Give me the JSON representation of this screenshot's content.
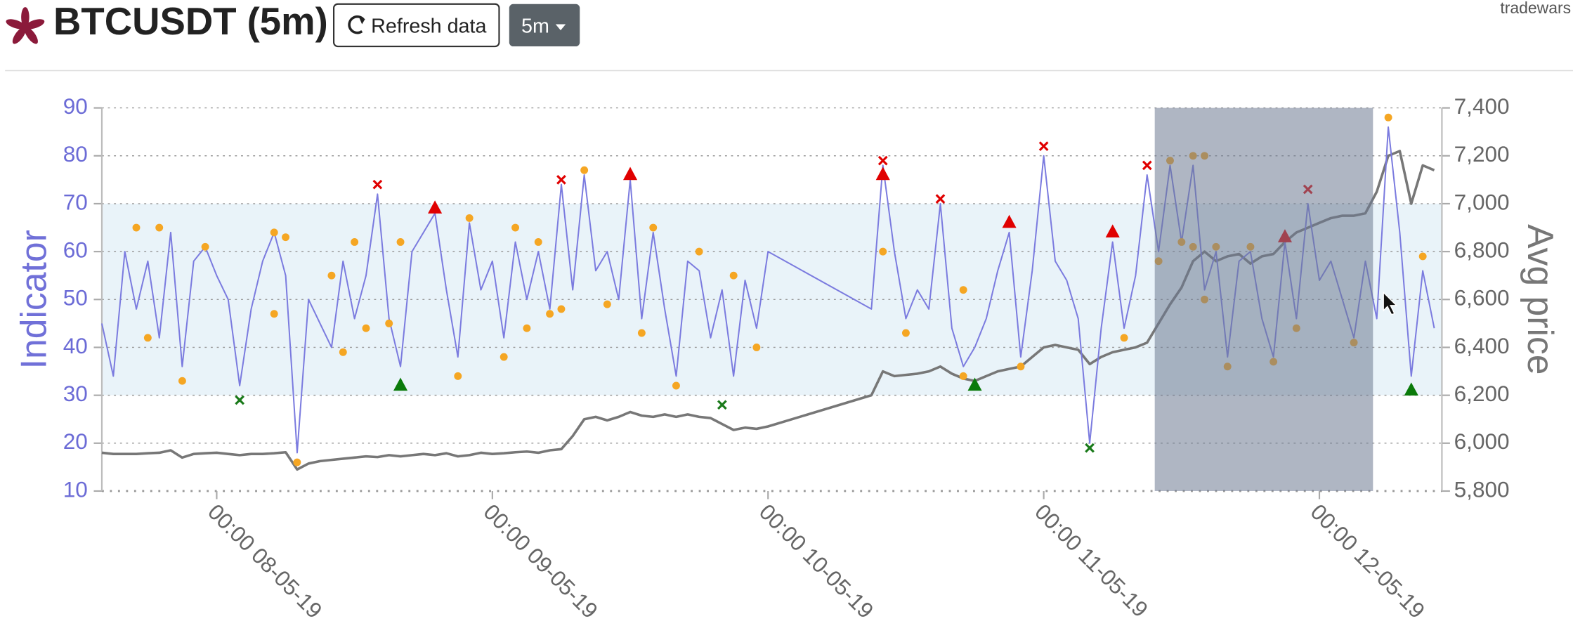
{
  "header": {
    "title": "BTCUSDT (5m)",
    "refresh": "Refresh data",
    "interval": "5m",
    "user": "tradewars"
  },
  "chart_data": {
    "type": "line",
    "y_label": "Indicator",
    "y2_label": "Avg price",
    "xlim": [
      "2019-05-07T14:00",
      "2019-05-12T10:40"
    ],
    "xticks": [
      {
        "value": "2019-05-08T00:00",
        "label": "00:00 08-05-19"
      },
      {
        "value": "2019-05-09T00:00",
        "label": "00:00 09-05-19"
      },
      {
        "value": "2019-05-10T00:00",
        "label": "00:00 10-05-19"
      },
      {
        "value": "2019-05-11T00:00",
        "label": "00:00 11-05-19"
      },
      {
        "value": "2019-05-12T00:00",
        "label": "00:00 12-05-19"
      }
    ],
    "ylim": [
      10,
      90
    ],
    "yticks": [
      10,
      20,
      30,
      40,
      50,
      60,
      70,
      80,
      90
    ],
    "y2lim": [
      5800,
      7400
    ],
    "y2ticks": [
      {
        "value": 5800,
        "label": "5,800"
      },
      {
        "value": 6000,
        "label": "6,000"
      },
      {
        "value": 6200,
        "label": "6,200"
      },
      {
        "value": 6400,
        "label": "6,400"
      },
      {
        "value": 6600,
        "label": "6,600"
      },
      {
        "value": 6800,
        "label": "6,800"
      },
      {
        "value": 7000,
        "label": "7,000"
      },
      {
        "value": 7200,
        "label": "7,200"
      },
      {
        "value": 7400,
        "label": "7,400"
      }
    ],
    "grid": true,
    "band": [
      30,
      70
    ],
    "band_color": "#e9f3f9",
    "selection": [
      "2019-05-11T09:40",
      "2019-05-12T04:40"
    ],
    "x": [
      "2019-05-07T14:00",
      "2019-05-07T15:00",
      "2019-05-07T16:00",
      "2019-05-07T17:00",
      "2019-05-07T18:00",
      "2019-05-07T19:00",
      "2019-05-07T20:00",
      "2019-05-07T21:00",
      "2019-05-07T22:00",
      "2019-05-07T23:00",
      "2019-05-08T00:00",
      "2019-05-08T01:00",
      "2019-05-08T02:00",
      "2019-05-08T03:00",
      "2019-05-08T04:00",
      "2019-05-08T05:00",
      "2019-05-08T06:00",
      "2019-05-08T07:00",
      "2019-05-08T08:00",
      "2019-05-08T09:00",
      "2019-05-08T10:00",
      "2019-05-08T11:00",
      "2019-05-08T12:00",
      "2019-05-08T13:00",
      "2019-05-08T14:00",
      "2019-05-08T15:00",
      "2019-05-08T16:00",
      "2019-05-08T17:00",
      "2019-05-08T18:00",
      "2019-05-08T19:00",
      "2019-05-08T20:00",
      "2019-05-08T21:00",
      "2019-05-08T22:00",
      "2019-05-08T23:00",
      "2019-05-09T00:00",
      "2019-05-09T01:00",
      "2019-05-09T02:00",
      "2019-05-09T03:00",
      "2019-05-09T04:00",
      "2019-05-09T05:00",
      "2019-05-09T06:00",
      "2019-05-09T07:00",
      "2019-05-09T08:00",
      "2019-05-09T09:00",
      "2019-05-09T10:00",
      "2019-05-09T11:00",
      "2019-05-09T12:00",
      "2019-05-09T13:00",
      "2019-05-09T14:00",
      "2019-05-09T15:00",
      "2019-05-09T16:00",
      "2019-05-09T17:00",
      "2019-05-09T18:00",
      "2019-05-09T19:00",
      "2019-05-09T20:00",
      "2019-05-09T21:00",
      "2019-05-09T22:00",
      "2019-05-09T23:00",
      "2019-05-10T00:00",
      "2019-05-10T09:00",
      "2019-05-10T10:00",
      "2019-05-10T11:00",
      "2019-05-10T12:00",
      "2019-05-10T13:00",
      "2019-05-10T14:00",
      "2019-05-10T15:00",
      "2019-05-10T16:00",
      "2019-05-10T17:00",
      "2019-05-10T18:00",
      "2019-05-10T19:00",
      "2019-05-10T20:00",
      "2019-05-10T21:00",
      "2019-05-10T22:00",
      "2019-05-10T23:00",
      "2019-05-11T00:00",
      "2019-05-11T01:00",
      "2019-05-11T02:00",
      "2019-05-11T03:00",
      "2019-05-11T04:00",
      "2019-05-11T05:00",
      "2019-05-11T06:00",
      "2019-05-11T07:00",
      "2019-05-11T08:00",
      "2019-05-11T09:00",
      "2019-05-11T10:00",
      "2019-05-11T11:00",
      "2019-05-11T12:00",
      "2019-05-11T13:00",
      "2019-05-11T14:00",
      "2019-05-11T15:00",
      "2019-05-11T16:00",
      "2019-05-11T17:00",
      "2019-05-11T18:00",
      "2019-05-11T19:00",
      "2019-05-11T20:00",
      "2019-05-11T21:00",
      "2019-05-11T22:00",
      "2019-05-11T23:00",
      "2019-05-12T00:00",
      "2019-05-12T01:00",
      "2019-05-12T02:00",
      "2019-05-12T03:00",
      "2019-05-12T04:00",
      "2019-05-12T05:00",
      "2019-05-12T06:00",
      "2019-05-12T07:00",
      "2019-05-12T08:00",
      "2019-05-12T09:00",
      "2019-05-12T10:00"
    ],
    "series": [
      {
        "type": "line",
        "color": "#7b7bdf",
        "values": [
          45,
          34,
          60,
          48,
          58,
          42,
          64,
          36,
          58,
          61,
          55,
          50,
          32,
          48,
          58,
          64,
          55,
          18,
          50,
          45,
          40,
          58,
          46,
          55,
          72,
          46,
          36,
          60,
          64,
          68,
          52,
          38,
          66,
          52,
          58,
          42,
          62,
          50,
          60,
          48,
          74,
          52,
          76,
          56,
          60,
          50,
          75,
          46,
          64,
          48,
          34,
          58,
          56,
          42,
          52,
          34,
          54,
          44,
          60,
          48,
          78,
          60,
          46,
          52,
          48,
          70,
          44,
          36,
          40,
          46,
          56,
          64,
          38,
          56,
          80,
          58,
          54,
          46,
          20,
          44,
          62,
          44,
          55,
          76,
          60,
          78,
          62,
          78,
          52,
          60,
          38,
          58,
          60,
          46,
          38,
          62,
          46,
          70,
          54,
          58,
          50,
          42,
          58,
          46,
          86,
          64,
          34,
          56,
          44
        ]
      },
      {
        "type": "line",
        "color": "#777777",
        "axis": "y2",
        "values": [
          5960,
          5955,
          5955,
          5955,
          5958,
          5960,
          5970,
          5940,
          5955,
          5958,
          5960,
          5955,
          5950,
          5955,
          5955,
          5958,
          5962,
          5890,
          5915,
          5925,
          5930,
          5935,
          5940,
          5945,
          5942,
          5950,
          5945,
          5950,
          5955,
          5950,
          5958,
          5945,
          5950,
          5960,
          5955,
          5958,
          5962,
          5965,
          5960,
          5970,
          5975,
          6030,
          6100,
          6110,
          6095,
          6110,
          6130,
          6115,
          6110,
          6120,
          6110,
          6120,
          6110,
          6105,
          6080,
          6055,
          6065,
          6060,
          6070,
          6200,
          6300,
          6280,
          6285,
          6290,
          6300,
          6320,
          6290,
          6270,
          6260,
          6280,
          6300,
          6310,
          6320,
          6360,
          6400,
          6410,
          6400,
          6390,
          6330,
          6360,
          6380,
          6390,
          6400,
          6420,
          6500,
          6580,
          6650,
          6760,
          6800,
          6760,
          6780,
          6790,
          6750,
          6780,
          6790,
          6840,
          6880,
          6900,
          6920,
          6940,
          6950,
          6950,
          6960,
          7050,
          7200,
          7220,
          7000,
          7160,
          7140
        ]
      },
      {
        "type": "scatter",
        "marker": "circle",
        "color": "#f5a623",
        "x": [
          "2019-05-07T17:00",
          "2019-05-07T18:00",
          "2019-05-07T19:00",
          "2019-05-07T21:00",
          "2019-05-07T23:00",
          "2019-05-08T05:00",
          "2019-05-08T05:00",
          "2019-05-08T06:00",
          "2019-05-08T07:00",
          "2019-05-08T10:00",
          "2019-05-08T11:00",
          "2019-05-08T12:00",
          "2019-05-08T13:00",
          "2019-05-08T15:00",
          "2019-05-08T16:00",
          "2019-05-08T21:00",
          "2019-05-08T22:00",
          "2019-05-09T01:00",
          "2019-05-09T02:00",
          "2019-05-09T03:00",
          "2019-05-09T04:00",
          "2019-05-09T05:00",
          "2019-05-09T06:00",
          "2019-05-09T08:00",
          "2019-05-09T10:00",
          "2019-05-09T13:00",
          "2019-05-09T14:00",
          "2019-05-09T16:00",
          "2019-05-09T18:00",
          "2019-05-09T21:00",
          "2019-05-09T23:00",
          "2019-05-10T10:00",
          "2019-05-10T12:00",
          "2019-05-10T17:00",
          "2019-05-10T17:00",
          "2019-05-10T22:00",
          "2019-05-11T07:00",
          "2019-05-11T10:00",
          "2019-05-11T11:00",
          "2019-05-11T12:00",
          "2019-05-11T13:00",
          "2019-05-11T13:00",
          "2019-05-11T14:00",
          "2019-05-11T14:00",
          "2019-05-11T15:00",
          "2019-05-11T16:00",
          "2019-05-11T18:00",
          "2019-05-11T20:00",
          "2019-05-11T22:00",
          "2019-05-12T03:00",
          "2019-05-12T06:00",
          "2019-05-12T09:00"
        ],
        "values": [
          65,
          42,
          65,
          33,
          61,
          64,
          47,
          63,
          16,
          55,
          39,
          62,
          44,
          45,
          62,
          34,
          67,
          38,
          65,
          44,
          62,
          47,
          48,
          77,
          49,
          43,
          65,
          32,
          60,
          55,
          40,
          60,
          43,
          34,
          52,
          36,
          42,
          58,
          79,
          62,
          80,
          61,
          80,
          50,
          61,
          36,
          61,
          37,
          44,
          41,
          88,
          59
        ]
      },
      {
        "type": "scatter",
        "marker": "cross",
        "color": "#e00000",
        "x": [
          "2019-05-08T14:00",
          "2019-05-09T06:00",
          "2019-05-10T10:00",
          "2019-05-10T15:00",
          "2019-05-11T00:00",
          "2019-05-11T09:00",
          "2019-05-11T23:00"
        ],
        "values": [
          74,
          75,
          79,
          71,
          82,
          78,
          73
        ]
      },
      {
        "type": "scatter",
        "marker": "cross",
        "color": "#1a7a1a",
        "x": [
          "2019-05-08T02:00",
          "2019-05-09T20:00",
          "2019-05-11T04:00"
        ],
        "values": [
          29,
          28,
          19
        ]
      },
      {
        "type": "scatter",
        "marker": "triangle",
        "color": "#e00000",
        "x": [
          "2019-05-08T19:00",
          "2019-05-09T12:00",
          "2019-05-10T10:00",
          "2019-05-10T21:00",
          "2019-05-11T06:00",
          "2019-05-11T21:00"
        ],
        "values": [
          69,
          76,
          76,
          66,
          64,
          63
        ]
      },
      {
        "type": "scatter",
        "marker": "triangle",
        "color": "#0a7a0a",
        "x": [
          "2019-05-08T16:00",
          "2019-05-10T18:00",
          "2019-05-12T08:00"
        ],
        "values": [
          32,
          32,
          31
        ]
      }
    ]
  }
}
